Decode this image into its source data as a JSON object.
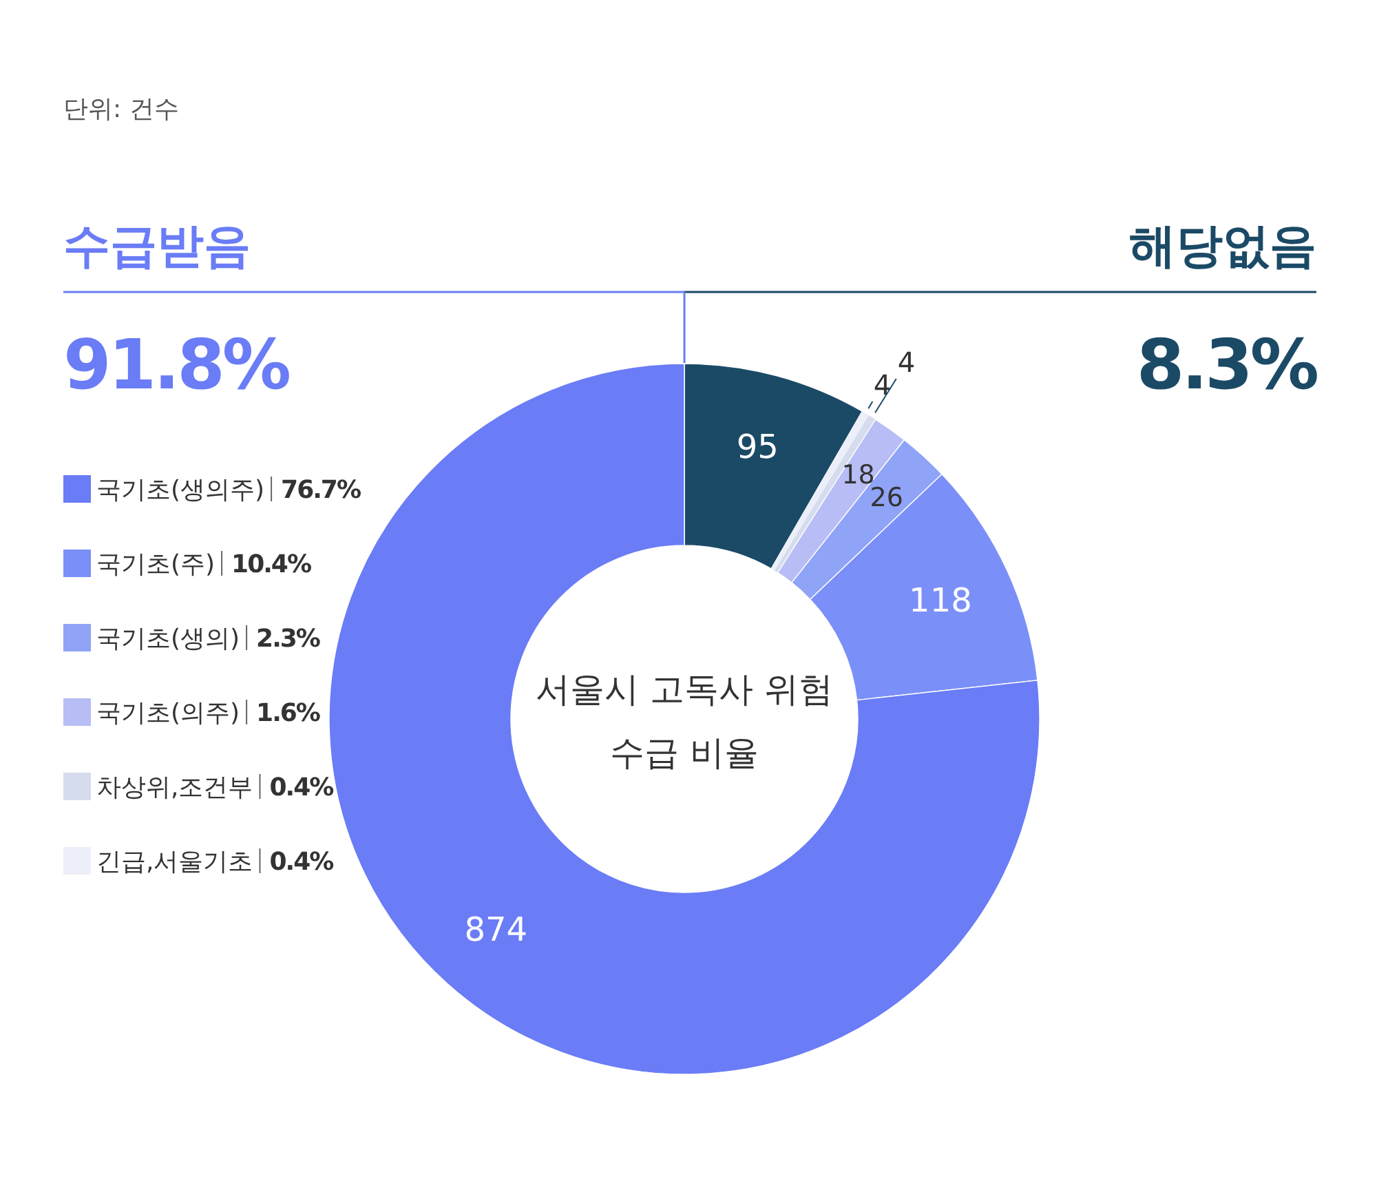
{
  "chart_data": {
    "type": "donut",
    "title": "서울시 고독사 위험 수급 비율",
    "categories": [
      null,
      "긴급,서울기초",
      "차상위,조건부",
      "국기초(의주)",
      "국기초(생의)",
      "국기초(주)",
      "국기초(생의주)"
    ],
    "values": [
      95,
      4,
      4,
      18,
      26,
      118,
      874
    ],
    "colors": [
      "#1b4a66",
      "#eceff9",
      "#d5dcee",
      "#b8bdf5",
      "#8fa3f7",
      "#7b8ff8",
      "#6a7cf6"
    ],
    "data_labels": true,
    "legend": "left",
    "annotations": [
      "단위: 건수",
      "수급받음",
      "91.8%",
      "해당없음",
      "8.3%",
      "0.4%",
      "0.4%",
      "1.6%",
      "2.3%",
      "10.4%",
      "76.7%"
    ]
  }
}
